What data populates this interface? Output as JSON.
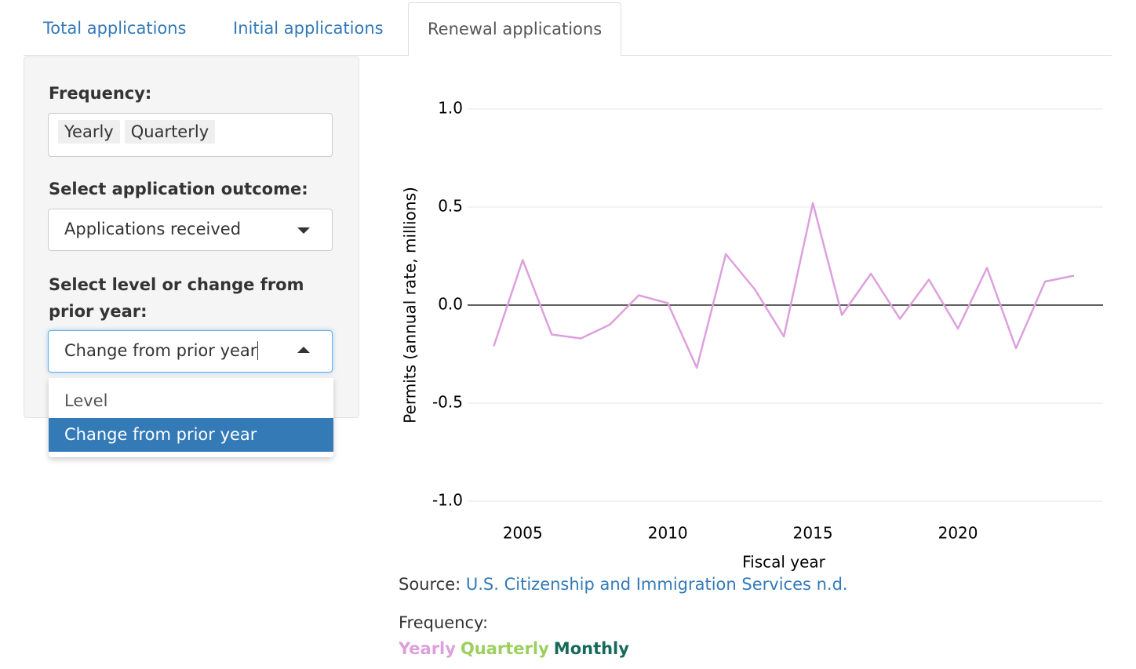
{
  "tabs": [
    "Total applications",
    "Initial applications",
    "Renewal applications"
  ],
  "sidebar": {
    "frequency_label": "Frequency:",
    "frequency_selected": [
      "Yearly",
      "Quarterly"
    ],
    "outcome_label": "Select application outcome:",
    "outcome_value": "Applications received",
    "level_label": "Select level or change from prior year:",
    "level_value": "Change from prior year",
    "level_options": [
      "Level",
      "Change from prior year"
    ]
  },
  "source": {
    "prefix": "Source:",
    "link": "U.S. Citizenship and Immigration Services n.d."
  },
  "legend": {
    "title": "Frequency:",
    "items": [
      {
        "label": "Yearly",
        "color": "#dda0dd"
      },
      {
        "label": "Quarterly",
        "color": "#9ccf5e"
      },
      {
        "label": "Monthly",
        "color": "#17695a"
      }
    ]
  },
  "chart_data": {
    "type": "line",
    "x_label": "Fiscal year",
    "y_label": "Permits (annual rate, millions)",
    "x": [
      2004,
      2005,
      2006,
      2007,
      2008,
      2009,
      2010,
      2011,
      2012,
      2013,
      2014,
      2015,
      2016,
      2017,
      2018,
      2019,
      2020,
      2021,
      2022,
      2023,
      2024
    ],
    "series": [
      {
        "name": "Yearly",
        "color": "#dda0dd",
        "values": [
          -0.21,
          0.23,
          -0.15,
          -0.17,
          -0.1,
          0.05,
          0.01,
          -0.32,
          0.26,
          0.08,
          -0.16,
          0.52,
          -0.05,
          0.16,
          -0.07,
          0.13,
          -0.12,
          0.19,
          -0.22,
          0.12,
          0.15
        ]
      }
    ],
    "xlim": [
      2003.1,
      2025
    ],
    "xticks": [
      2005,
      2010,
      2015,
      2020
    ],
    "ylim": [
      -1.1,
      1.1
    ],
    "yticks": [
      {
        "value": -1,
        "label": "-1.0"
      },
      -0.5,
      {
        "value": 0,
        "label": "0.0"
      },
      0.5,
      {
        "value": 1,
        "label": "1.0"
      }
    ],
    "grid": true,
    "zero_line": true
  }
}
